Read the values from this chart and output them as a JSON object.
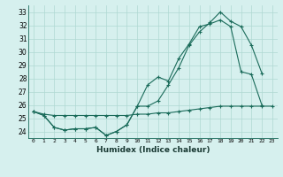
{
  "title": "",
  "xlabel": "Humidex (Indice chaleur)",
  "bg_color": "#d6f0ee",
  "grid_color": "#afd8d2",
  "line_color": "#1a6b5a",
  "xlim": [
    -0.5,
    23.5
  ],
  "ylim": [
    23.5,
    33.5
  ],
  "xticks": [
    0,
    1,
    2,
    3,
    4,
    5,
    6,
    7,
    8,
    9,
    10,
    11,
    12,
    13,
    14,
    15,
    16,
    17,
    18,
    19,
    20,
    21,
    22,
    23
  ],
  "yticks": [
    24,
    25,
    26,
    27,
    28,
    29,
    30,
    31,
    32,
    33
  ],
  "line1_x": [
    0,
    1,
    2,
    3,
    4,
    5,
    6,
    7,
    8,
    9,
    10,
    11,
    12,
    13,
    14,
    15,
    16,
    17,
    18,
    19,
    20,
    21,
    22
  ],
  "line1_y": [
    25.5,
    25.2,
    24.3,
    24.1,
    24.2,
    24.2,
    24.3,
    23.7,
    24.0,
    24.5,
    25.9,
    27.5,
    28.1,
    27.8,
    29.5,
    30.6,
    31.9,
    32.1,
    32.4,
    31.9,
    28.5,
    28.3,
    26.0
  ],
  "line2_x": [
    0,
    1,
    2,
    3,
    4,
    5,
    6,
    7,
    8,
    9,
    10,
    11,
    12,
    13,
    14,
    15,
    16,
    17,
    18,
    19,
    20,
    21,
    22
  ],
  "line2_y": [
    25.5,
    25.2,
    24.3,
    24.1,
    24.2,
    24.2,
    24.3,
    23.7,
    24.0,
    24.5,
    25.9,
    25.9,
    26.3,
    27.5,
    28.8,
    30.5,
    31.5,
    32.2,
    33.0,
    32.3,
    31.9,
    30.5,
    28.4
  ],
  "line3_x": [
    0,
    1,
    2,
    3,
    4,
    5,
    6,
    7,
    8,
    9,
    10,
    11,
    12,
    13,
    14,
    15,
    16,
    17,
    18,
    19,
    20,
    21,
    22,
    23
  ],
  "line3_y": [
    25.5,
    25.3,
    25.2,
    25.2,
    25.2,
    25.2,
    25.2,
    25.2,
    25.2,
    25.2,
    25.3,
    25.3,
    25.4,
    25.4,
    25.5,
    25.6,
    25.7,
    25.8,
    25.9,
    25.9,
    25.9,
    25.9,
    25.9,
    25.9
  ]
}
